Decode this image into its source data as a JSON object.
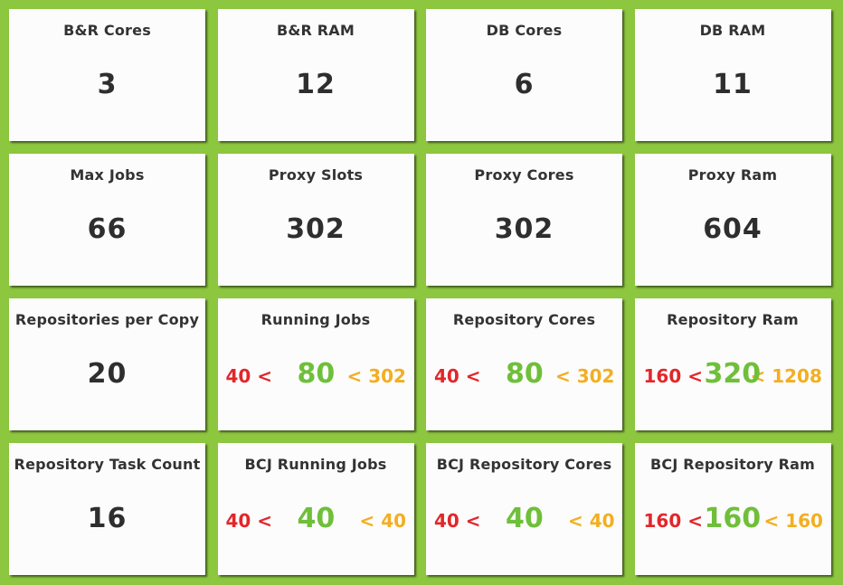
{
  "tiles": {
    "br_cores": {
      "title": "B&R Cores",
      "value": "3"
    },
    "br_ram": {
      "title": "B&R RAM",
      "value": "12"
    },
    "db_cores": {
      "title": "DB Cores",
      "value": "6"
    },
    "db_ram": {
      "title": "DB RAM",
      "value": "11"
    },
    "max_jobs": {
      "title": "Max Jobs",
      "value": "66"
    },
    "proxy_slots": {
      "title": "Proxy Slots",
      "value": "302"
    },
    "proxy_cores": {
      "title": "Proxy Cores",
      "value": "302"
    },
    "proxy_ram": {
      "title": "Proxy Ram",
      "value": "604"
    },
    "repos_per_copy": {
      "title": "Repositories per Copy",
      "value": "20"
    },
    "running_jobs": {
      "title": "Running Jobs",
      "min": "40 <",
      "value": "80",
      "max": "< 302"
    },
    "repository_cores": {
      "title": "Repository Cores",
      "min": "40 <",
      "value": "80",
      "max": "< 302"
    },
    "repository_ram": {
      "title": "Repository Ram",
      "min": "160 <",
      "value": "320",
      "max": "< 1208"
    },
    "repository_task_count": {
      "title": "Repository Task Count",
      "value": "16"
    },
    "bcj_running_jobs": {
      "title": "BCJ Running Jobs",
      "min": "40 <",
      "value": "40",
      "max": "< 40"
    },
    "bcj_repository_cores": {
      "title": "BCJ Repository Cores",
      "min": "40 <",
      "value": "40",
      "max": "< 40"
    },
    "bcj_repository_ram": {
      "title": "BCJ Repository Ram",
      "min": "160 <",
      "value": "160",
      "max": "< 160"
    }
  },
  "colors": {
    "background": "#8dc63f",
    "min": "#e2262a",
    "value": "#6fbf3a",
    "max": "#f3ae21",
    "text": "#333333"
  }
}
